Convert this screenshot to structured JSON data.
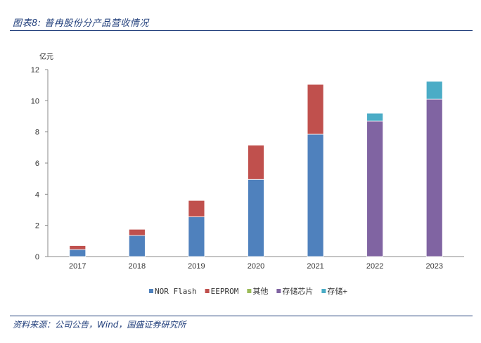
{
  "title": "图表8: 普冉股份分产品营收情况",
  "source": "资料来源：公司公告，Wind，国盛证券研究所",
  "chart_data": {
    "type": "bar",
    "stacked": true,
    "unit_label": "亿元",
    "categories": [
      "2017",
      "2018",
      "2019",
      "2020",
      "2021",
      "2022",
      "2023"
    ],
    "ylim": [
      0,
      12
    ],
    "yticks": [
      "0",
      "2",
      "4",
      "6",
      "8",
      "10",
      "12"
    ],
    "grid": false,
    "legend_position": "bottom",
    "series": [
      {
        "name": "NOR Flash",
        "color": "#4f81bd",
        "values": [
          0.45,
          1.35,
          2.55,
          4.95,
          7.85,
          0,
          0
        ]
      },
      {
        "name": "EEPROM",
        "color": "#c0504d",
        "values": [
          0.25,
          0.4,
          1.05,
          2.2,
          3.2,
          0,
          0
        ]
      },
      {
        "name": "其他",
        "color": "#9bbb59",
        "values": [
          0,
          0,
          0,
          0,
          0,
          0,
          0
        ]
      },
      {
        "name": "存储芯片",
        "color": "#8064a2",
        "values": [
          0,
          0,
          0,
          0,
          0,
          8.7,
          10.1
        ]
      },
      {
        "name": "存储+",
        "color": "#4bacc6",
        "values": [
          0,
          0,
          0,
          0,
          0,
          0.5,
          1.15
        ]
      }
    ]
  }
}
